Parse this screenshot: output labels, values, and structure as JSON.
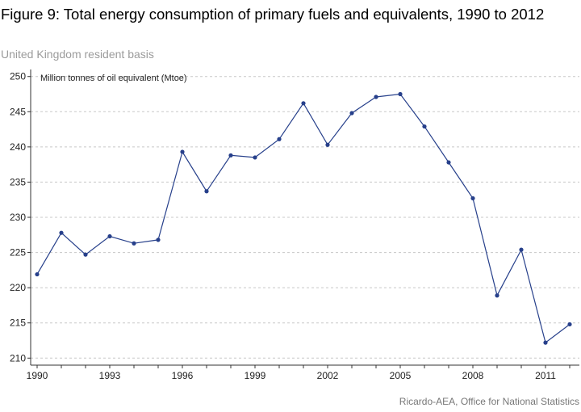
{
  "chart_data": {
    "type": "line",
    "title": "Figure 9: Total energy consumption of primary fuels and equivalents, 1990 to 2012",
    "subtitle": "United Kingdom resident basis",
    "ylabel": "Million tonnes of oil equivalent (Mtoe)",
    "source": "Ricardo-AEA, Office for National Statistics",
    "x": [
      1990,
      1991,
      1992,
      1993,
      1994,
      1995,
      1996,
      1997,
      1998,
      1999,
      2000,
      2001,
      2002,
      2003,
      2004,
      2005,
      2006,
      2007,
      2008,
      2009,
      2010,
      2011,
      2012
    ],
    "series": [
      {
        "values": [
          221.9,
          227.8,
          224.7,
          227.3,
          226.3,
          226.8,
          239.3,
          233.7,
          238.8,
          238.5,
          241.1,
          246.2,
          240.3,
          244.8,
          247.1,
          247.5,
          242.9,
          237.8,
          232.7,
          218.9,
          225.4,
          212.2,
          214.8
        ],
        "color": "#27408b"
      }
    ],
    "xticks": [
      "1990",
      "1993",
      "1996",
      "1999",
      "2002",
      "2005",
      "2008",
      "2011"
    ],
    "yticks": [
      "210",
      "215",
      "220",
      "225",
      "230",
      "235",
      "240",
      "245",
      "250"
    ],
    "xlim": [
      1990,
      2012.2
    ],
    "ylim": [
      209,
      251
    ],
    "grid": "horizontal dashed",
    "gridColor": "#c8c8c8",
    "axisColor": "#333333"
  }
}
